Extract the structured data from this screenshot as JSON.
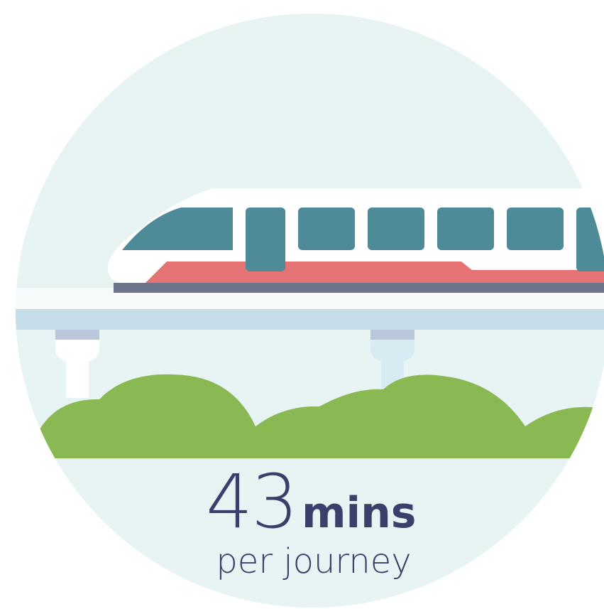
{
  "stat": {
    "value": 43,
    "unit": "mins",
    "caption": "per journey"
  }
}
